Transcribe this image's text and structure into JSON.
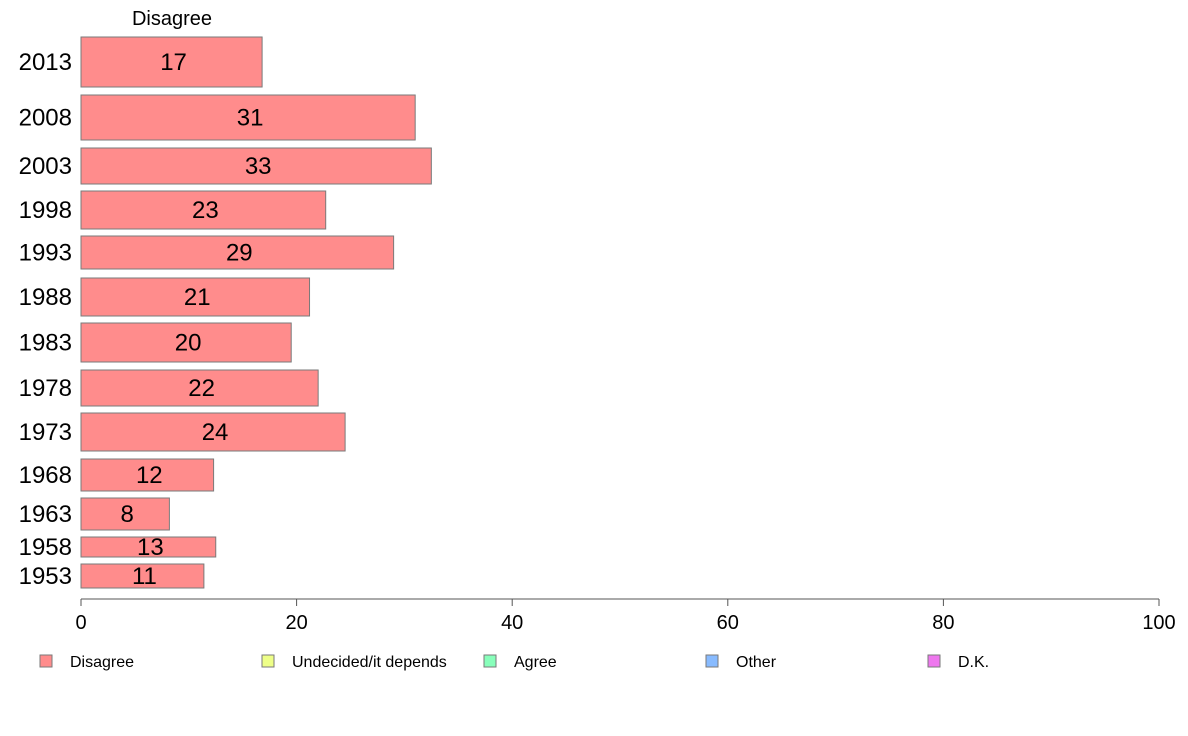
{
  "chart_data": {
    "type": "bar",
    "orientation": "horizontal",
    "title": "",
    "column_header": "Disagree",
    "xlabel": "",
    "ylabel": "",
    "xlim": [
      0,
      100
    ],
    "xticks": [
      0,
      20,
      40,
      60,
      80,
      100
    ],
    "grid": false,
    "legend_position": "bottom",
    "categories": [
      "2013",
      "2008",
      "2003",
      "1998",
      "1993",
      "1988",
      "1983",
      "1978",
      "1973",
      "1968",
      "1963",
      "1958",
      "1953"
    ],
    "series": [
      {
        "name": "Disagree",
        "color": "#ff8c8c",
        "values": [
          16.8,
          31,
          32.5,
          22.7,
          29,
          21.2,
          19.5,
          22,
          24.5,
          12.3,
          8.2,
          12.5,
          11.4
        ],
        "labels": [
          "17",
          "31",
          "33",
          "23",
          "29",
          "21",
          "20",
          "22",
          "24",
          "12",
          "8",
          "13",
          "11"
        ]
      }
    ],
    "legend": [
      {
        "name": "Disagree",
        "color": "#ff8c8c"
      },
      {
        "name": "Undecided/it depends",
        "color": "#eeff88"
      },
      {
        "name": "Agree",
        "color": "#88ffbb"
      },
      {
        "name": "Other",
        "color": "#88bbff"
      },
      {
        "name": "D.K.",
        "color": "#ee77ee"
      }
    ]
  }
}
